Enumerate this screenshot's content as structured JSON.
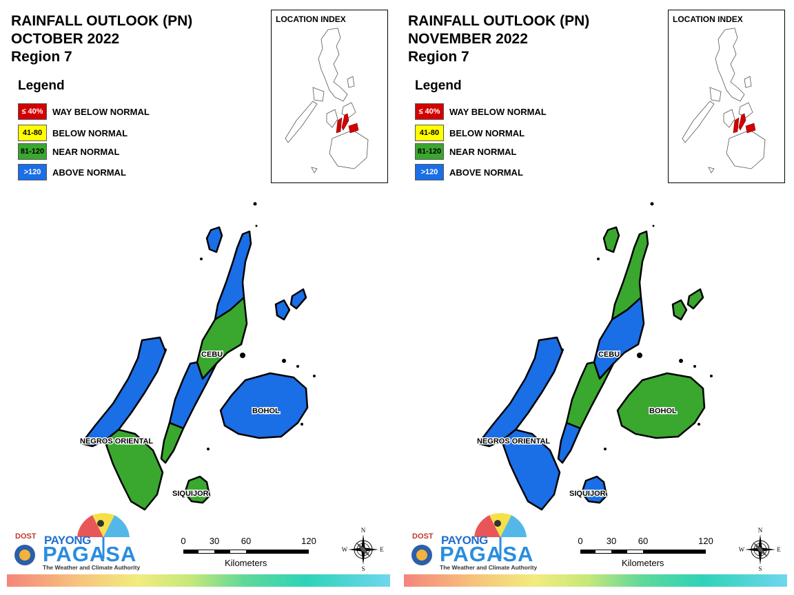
{
  "colors": {
    "way_below": "#d40000",
    "below": "#ffff00",
    "near": "#3aa72f",
    "above": "#1a6ee6"
  },
  "legend": {
    "title": "Legend",
    "items": [
      {
        "range": "≤ 40%",
        "label": "WAY BELOW NORMAL",
        "color": "#d40000",
        "text_color": "#ffffff"
      },
      {
        "range": "41-80",
        "label": "BELOW NORMAL",
        "color": "#ffff00",
        "text_color": "#000000"
      },
      {
        "range": "81-120",
        "label": "NEAR NORMAL",
        "color": "#3aa72f",
        "text_color": "#000000"
      },
      {
        "range": ">120",
        "label": "ABOVE NORMAL",
        "color": "#1a6ee6",
        "text_color": "#ffffff"
      }
    ]
  },
  "inset_title": "LOCATION INDEX",
  "place_labels": {
    "cebu": "CEBU",
    "bohol": "BOHOL",
    "negros": "NEGROS ORIENTAL",
    "siquijor": "SIQUIJOR"
  },
  "logo": {
    "dost": "DOST",
    "payong": "PAYONG",
    "pagasa": "PAGASA",
    "tagline": "The Weather and Climate Authority"
  },
  "scale": {
    "ticks": [
      "0",
      "30",
      "60",
      "120"
    ],
    "units": "Kilometers"
  },
  "compass": {
    "n": "N",
    "s": "S",
    "e": "E",
    "w": "W"
  },
  "panels": [
    {
      "title_line1": "RAINFALL OUTLOOK (PN)",
      "month": "OCTOBER 2022",
      "region": "Region 7",
      "regions": {
        "cebu_north": "above",
        "cebu_mid": "near",
        "cebu_south": "above",
        "cebu_tip": "near",
        "bantayan": "above",
        "camotes": "above",
        "negros_north": "above",
        "negros_south": "near",
        "bohol": "above",
        "siquijor": "near"
      }
    },
    {
      "title_line1": "RAINFALL OUTLOOK (PN)",
      "month": "NOVEMBER 2022",
      "region": "Region 7",
      "regions": {
        "cebu_north": "near",
        "cebu_mid": "above",
        "cebu_south": "near",
        "cebu_tip": "above",
        "bantayan": "near",
        "camotes": "near",
        "negros_north": "above",
        "negros_south": "above",
        "bohol": "near",
        "siquijor": "above"
      }
    }
  ]
}
